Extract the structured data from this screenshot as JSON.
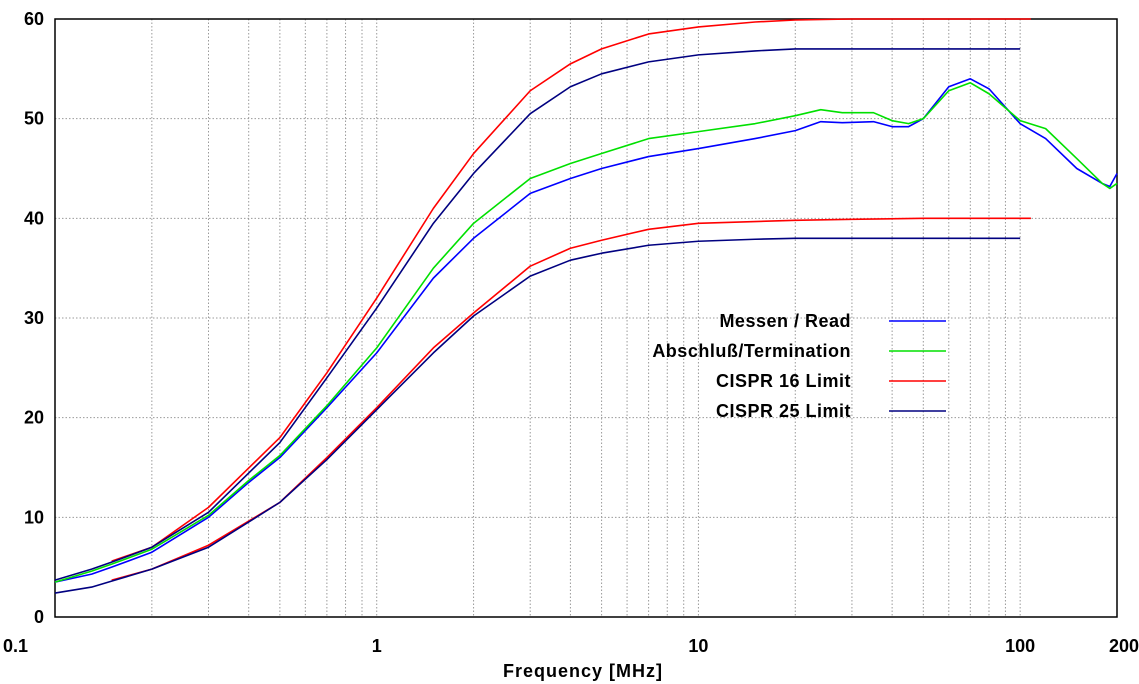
{
  "chart_data": {
    "type": "line",
    "xlabel": "Frequency [MHz]",
    "ylabel": "",
    "xscale": "log",
    "xlim": [
      0.1,
      200
    ],
    "ylim": [
      0,
      60
    ],
    "grid": true,
    "legend_position": "center-right",
    "x_ticks": [
      {
        "value": 0.1,
        "label": "0.1"
      },
      {
        "value": 1,
        "label": "1"
      },
      {
        "value": 10,
        "label": "10"
      },
      {
        "value": 100,
        "label": "100"
      },
      {
        "value": 200,
        "label": "200"
      }
    ],
    "y_ticks": [
      {
        "value": 0,
        "label": "0"
      },
      {
        "value": 10,
        "label": "10"
      },
      {
        "value": 20,
        "label": "20"
      },
      {
        "value": 30,
        "label": "30"
      },
      {
        "value": 40,
        "label": "40"
      },
      {
        "value": 50,
        "label": "50"
      },
      {
        "value": 60,
        "label": "60"
      }
    ],
    "series": [
      {
        "name": "Messen / Read",
        "color": "#0000ff",
        "x": [
          0.1,
          0.13,
          0.15,
          0.2,
          0.3,
          0.4,
          0.5,
          0.7,
          1,
          1.5,
          2,
          3,
          4,
          5,
          7,
          10,
          15,
          20,
          24,
          28,
          35,
          40,
          45,
          50,
          60,
          70,
          80,
          100,
          120,
          150,
          180,
          190,
          200
        ],
        "y": [
          3.5,
          4.3,
          5.0,
          6.5,
          10.0,
          13.5,
          16.0,
          21.0,
          26.5,
          34.0,
          38.0,
          42.5,
          44.0,
          45.0,
          46.2,
          47.0,
          48.0,
          48.8,
          49.7,
          49.6,
          49.7,
          49.2,
          49.2,
          50.0,
          53.2,
          54.0,
          53.0,
          49.5,
          48.0,
          45.0,
          43.5,
          43.2,
          44.5
        ]
      },
      {
        "name": "Abschluß/Termination",
        "color": "#00e000",
        "x": [
          0.1,
          0.13,
          0.15,
          0.2,
          0.3,
          0.4,
          0.5,
          0.7,
          1,
          1.5,
          2,
          3,
          4,
          5,
          7,
          10,
          15,
          20,
          24,
          28,
          35,
          40,
          45,
          50,
          60,
          70,
          80,
          100,
          120,
          150,
          180,
          190,
          200
        ],
        "y": [
          3.5,
          4.6,
          5.3,
          6.8,
          10.2,
          13.7,
          16.2,
          21.2,
          27.0,
          35.0,
          39.5,
          44.0,
          45.5,
          46.5,
          48.0,
          48.7,
          49.5,
          50.3,
          50.9,
          50.6,
          50.6,
          49.8,
          49.5,
          50.0,
          52.8,
          53.6,
          52.5,
          49.8,
          49.0,
          46.0,
          43.5,
          43.0,
          43.5
        ]
      },
      {
        "name": "CISPR 16 Limit",
        "color": "#ff0000",
        "segments": [
          {
            "x": [
              0.15,
              0.2,
              0.3,
              0.5,
              0.7,
              1,
              1.5,
              2,
              3,
              4,
              5,
              7,
              10,
              15,
              20,
              30,
              50,
              108
            ],
            "y": [
              5.6,
              7.0,
              11.0,
              18.0,
              24.5,
              32.0,
              41.0,
              46.5,
              52.8,
              55.5,
              57.0,
              58.5,
              59.2,
              59.7,
              59.9,
              60.0,
              60.0,
              60.0
            ]
          },
          {
            "x": [
              0.15,
              0.2,
              0.3,
              0.5,
              0.7,
              1,
              1.5,
              2,
              3,
              4,
              5,
              7,
              10,
              20,
              30,
              50,
              108
            ],
            "y": [
              3.7,
              4.8,
              7.2,
              11.5,
              16.0,
              21.0,
              27.0,
              30.5,
              35.2,
              37.0,
              37.8,
              38.9,
              39.5,
              39.8,
              39.9,
              40.0,
              40.0
            ]
          }
        ]
      },
      {
        "name": "CISPR 25 Limit",
        "color": "#000080",
        "segments": [
          {
            "x": [
              0.1,
              0.13,
              0.15,
              0.2,
              0.3,
              0.5,
              0.7,
              1,
              1.5,
              2,
              3,
              4,
              5,
              7,
              10,
              15,
              20,
              30,
              50,
              100
            ],
            "y": [
              3.7,
              4.8,
              5.5,
              7.0,
              10.5,
              17.5,
              24.0,
              31.0,
              39.5,
              44.5,
              50.5,
              53.2,
              54.5,
              55.7,
              56.4,
              56.8,
              57.0,
              57.0,
              57.0,
              57.0
            ]
          },
          {
            "x": [
              0.1,
              0.13,
              0.15,
              0.2,
              0.3,
              0.5,
              0.7,
              1,
              1.5,
              2,
              3,
              4,
              5,
              7,
              10,
              15,
              20,
              30,
              50,
              100
            ],
            "y": [
              2.4,
              3.0,
              3.6,
              4.8,
              7.0,
              11.5,
              15.8,
              20.8,
              26.5,
              30.2,
              34.2,
              35.8,
              36.5,
              37.3,
              37.7,
              37.9,
              38.0,
              38.0,
              38.0,
              38.0
            ]
          }
        ]
      }
    ]
  }
}
